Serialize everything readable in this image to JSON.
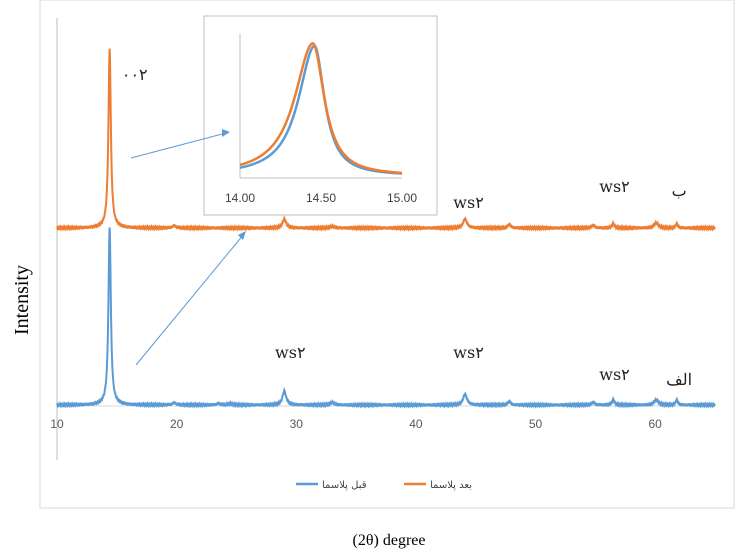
{
  "chart_data": {
    "type": "line",
    "ylabel": "Intensity",
    "xlabel": "(2θ) degree",
    "xlim": [
      10,
      65
    ],
    "xticks": [
      "10",
      "20",
      "30",
      "40",
      "50",
      "60"
    ],
    "grid": false,
    "legend_position": "bottom",
    "colors": {
      "before": "#5b9bd5",
      "after": "#ed7d31",
      "arrow": "#5b9bd5"
    },
    "series": [
      {
        "name": "قبل پلاسما",
        "color": "#5b9bd5",
        "baseline": 0,
        "peaks": [
          {
            "x": 14.4,
            "h": 100,
            "w": 0.12
          },
          {
            "x": 19.8,
            "h": 1.2,
            "w": 0.2
          },
          {
            "x": 23.5,
            "h": 0.8,
            "w": 0.2
          },
          {
            "x": 24.5,
            "h": 0.8,
            "w": 0.2
          },
          {
            "x": 29.0,
            "h": 8,
            "w": 0.18
          },
          {
            "x": 33.0,
            "h": 1.5,
            "w": 0.2
          },
          {
            "x": 44.1,
            "h": 6,
            "w": 0.2
          },
          {
            "x": 47.8,
            "h": 2,
            "w": 0.15
          },
          {
            "x": 54.8,
            "h": 1.5,
            "w": 0.15
          },
          {
            "x": 56.5,
            "h": 3,
            "w": 0.12
          },
          {
            "x": 60.1,
            "h": 3,
            "w": 0.2
          },
          {
            "x": 61.8,
            "h": 3,
            "w": 0.1
          }
        ]
      },
      {
        "name": "بعد پلاسما",
        "color": "#ed7d31",
        "baseline": 0,
        "peaks": [
          {
            "x": 14.4,
            "h": 100,
            "w": 0.12
          },
          {
            "x": 19.8,
            "h": 1.2,
            "w": 0.2
          },
          {
            "x": 29.0,
            "h": 5,
            "w": 0.18
          },
          {
            "x": 33.0,
            "h": 1,
            "w": 0.2
          },
          {
            "x": 44.1,
            "h": 5,
            "w": 0.2
          },
          {
            "x": 47.8,
            "h": 2,
            "w": 0.15
          },
          {
            "x": 54.8,
            "h": 1.5,
            "w": 0.15
          },
          {
            "x": 56.5,
            "h": 2.5,
            "w": 0.12
          },
          {
            "x": 60.1,
            "h": 3,
            "w": 0.2
          },
          {
            "x": 61.8,
            "h": 2.5,
            "w": 0.1
          }
        ]
      }
    ],
    "annotations": [
      {
        "text": "۰۰۲",
        "series": "after",
        "x": 16.5
      },
      {
        "text": "ws۲",
        "series": "after",
        "x": 44.4
      },
      {
        "text": "ws۲",
        "series": "after",
        "x": 56.6
      },
      {
        "text": "ب",
        "series": "after",
        "x": 62.0
      },
      {
        "text": "ws۲",
        "series": "before",
        "x": 29.5
      },
      {
        "text": "ws۲",
        "series": "before",
        "x": 44.4
      },
      {
        "text": "ws۲",
        "series": "before",
        "x": 56.6
      },
      {
        "text": "الف",
        "series": "before",
        "x": 62.0
      }
    ],
    "inset": {
      "xlim": [
        14.0,
        15.0
      ],
      "xticks": [
        "14.00",
        "14.50",
        "15.00"
      ],
      "series": [
        {
          "name": "قبل پلاسما",
          "color": "#5b9bd5",
          "center": 14.46,
          "width": 0.075,
          "height": 1.0,
          "asym": 1.6
        },
        {
          "name": "بعد پلاسما",
          "color": "#ed7d31",
          "center": 14.45,
          "width": 0.085,
          "height": 1.02,
          "asym": 1.6
        }
      ]
    }
  }
}
